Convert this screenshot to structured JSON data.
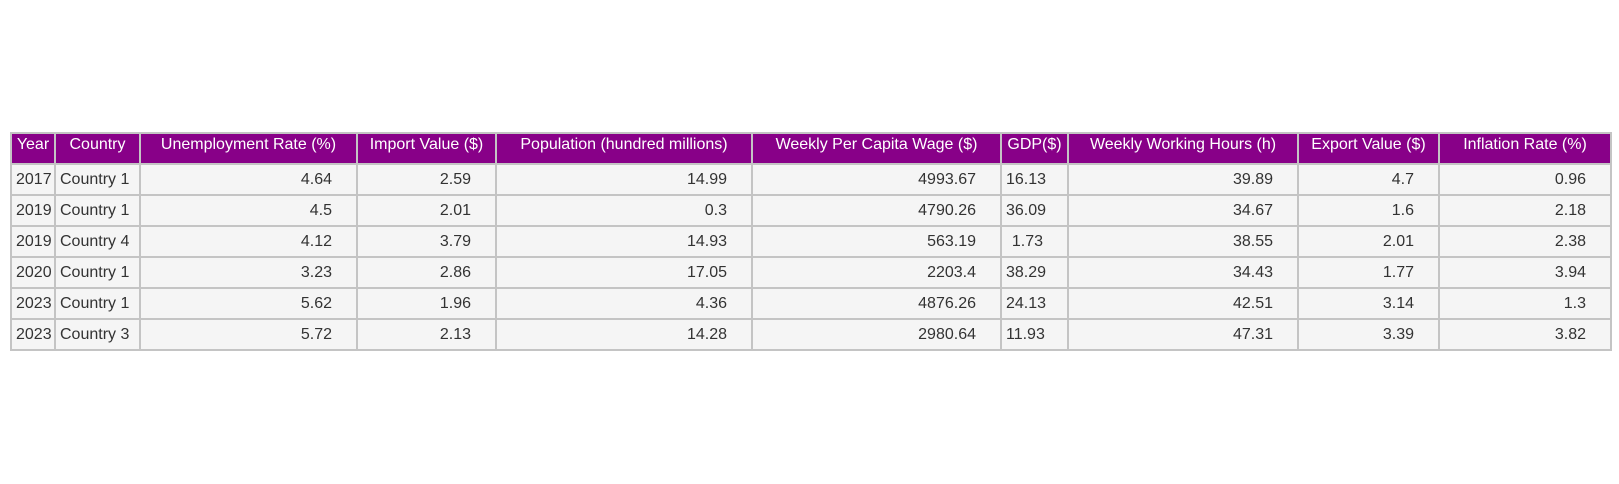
{
  "chart_data": {
    "type": "table",
    "columns": [
      "Year",
      "Country",
      "Unemployment Rate (%)",
      "Import Value ($)",
      "Population (hundred millions)",
      "Weekly Per Capita Wage ($)",
      "GDP($)",
      "Weekly Working Hours (h)",
      "Export Value ($)",
      "Inflation Rate (%)"
    ],
    "rows": [
      [
        "2017",
        "Country 1",
        "4.64",
        "2.59",
        "14.99",
        "4993.67",
        "16.13",
        "39.89",
        "4.7",
        "0.96"
      ],
      [
        "2019",
        "Country 1",
        "4.5",
        "2.01",
        "0.3",
        "4790.26",
        "36.09",
        "34.67",
        "1.6",
        "2.18"
      ],
      [
        "2019",
        "Country 4",
        "4.12",
        "3.79",
        "14.93",
        "563.19",
        "1.73",
        "38.55",
        "2.01",
        "2.38"
      ],
      [
        "2020",
        "Country 1",
        "3.23",
        "2.86",
        "17.05",
        "2203.4",
        "38.29",
        "34.43",
        "1.77",
        "3.94"
      ],
      [
        "2023",
        "Country 1",
        "5.62",
        "1.96",
        "4.36",
        "4876.26",
        "24.13",
        "42.51",
        "3.14",
        "1.3"
      ],
      [
        "2023",
        "Country 3",
        "5.72",
        "2.13",
        "14.28",
        "2980.64",
        "11.93",
        "47.31",
        "3.39",
        "3.82"
      ]
    ],
    "header_color": "#880088",
    "cell_color": "#f5f5f5",
    "border_color": "#c4c4c4"
  }
}
